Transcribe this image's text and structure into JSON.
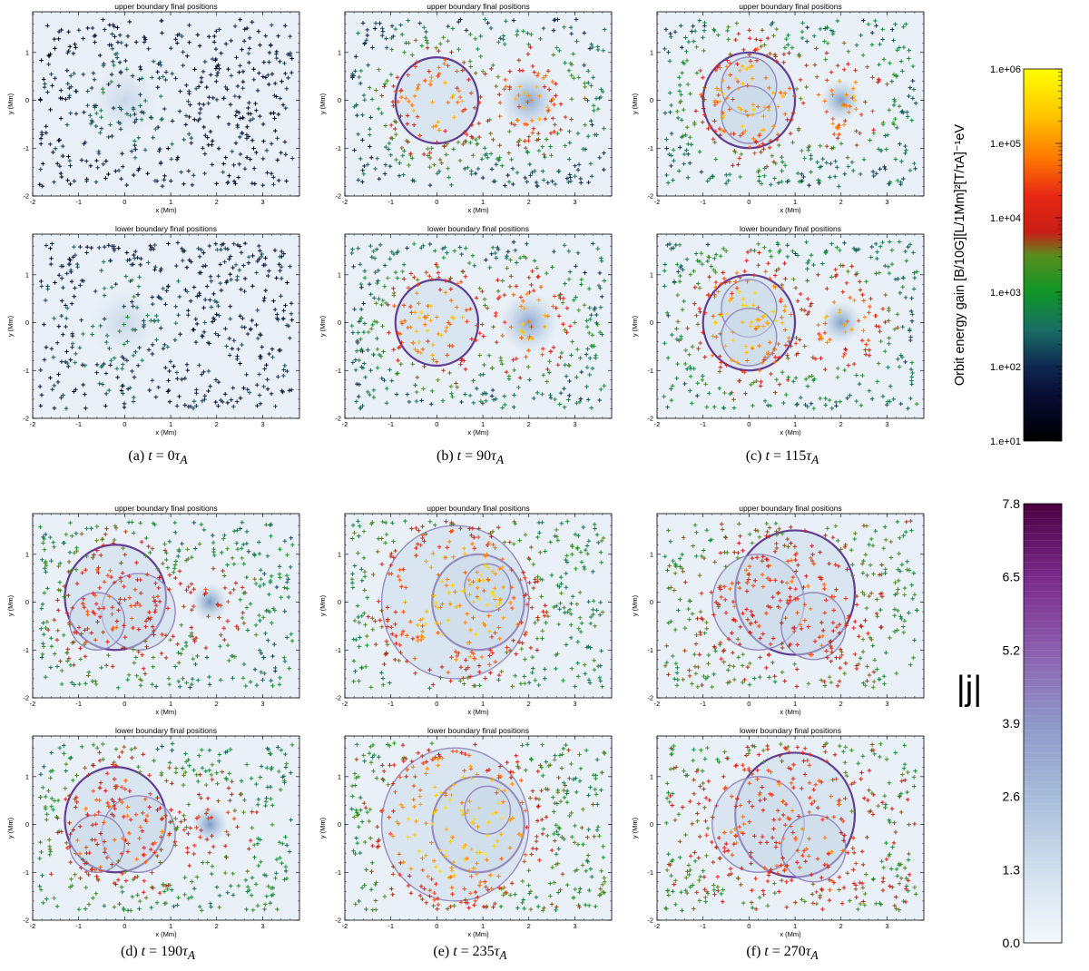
{
  "chart_data": {
    "type": "scatter",
    "xlabel": "x (Mm)",
    "ylabel": "y (Mm)",
    "xlim": [
      -2,
      3.8
    ],
    "ylim": [
      -2,
      1.85
    ],
    "xticks": [
      "-2",
      "-1",
      "0",
      "1",
      "2",
      "3"
    ],
    "yticks": [
      "-2",
      "-1",
      "0",
      "1"
    ],
    "subplot_titles": {
      "upper": "upper boundary final positions",
      "lower": "lower boundary final positions"
    },
    "panels": [
      {
        "id": "a",
        "caption_prefix": "(a) ",
        "caption_value": "0",
        "time": 0,
        "rings": [],
        "blobs": [
          {
            "x": 0,
            "y": 0,
            "r": 0.75,
            "o": 0.18
          }
        ],
        "energy_log": {
          "bg": 1.7,
          "near": 2.4
        }
      },
      {
        "id": "b",
        "caption_prefix": "(b) ",
        "caption_value": "90",
        "time": 90,
        "rings": [
          {
            "x": 0,
            "y": 0,
            "r": 0.9
          }
        ],
        "blobs": [
          {
            "x": 2,
            "y": 0,
            "r": 0.65,
            "o": 0.5
          }
        ],
        "energy_log": {
          "bg": 2.3,
          "near": 4.8
        }
      },
      {
        "id": "c",
        "caption_prefix": "(c) ",
        "caption_value": "115",
        "time": 115,
        "rings": [
          {
            "x": 0,
            "y": 0,
            "r": 1.0
          },
          {
            "x": 0,
            "y": 0.3,
            "r": 0.6
          },
          {
            "x": 0,
            "y": -0.3,
            "r": 0.6
          }
        ],
        "blobs": [
          {
            "x": 2,
            "y": 0,
            "r": 0.45,
            "o": 0.55
          }
        ],
        "energy_log": {
          "bg": 2.5,
          "near": 5.0
        }
      },
      {
        "id": "d",
        "caption_prefix": "(d) ",
        "caption_value": "190",
        "time": 190,
        "rings": [
          {
            "x": -0.2,
            "y": 0.1,
            "r": 1.1
          },
          {
            "x": 0.3,
            "y": -0.2,
            "r": 0.8
          },
          {
            "x": -0.6,
            "y": -0.4,
            "r": 0.6
          }
        ],
        "blobs": [
          {
            "x": 1.85,
            "y": 0,
            "r": 0.4,
            "o": 0.6
          }
        ],
        "energy_log": {
          "bg": 2.7,
          "near": 4.2
        }
      },
      {
        "id": "e",
        "caption_prefix": "(e) ",
        "caption_value": "235",
        "time": 235,
        "rings": [
          {
            "x": 0.9,
            "y": 0,
            "r": 1.0
          },
          {
            "x": 0.4,
            "y": 0,
            "r": 1.6
          },
          {
            "x": 1.1,
            "y": 0.3,
            "r": 0.5
          }
        ],
        "blobs": [],
        "energy_log": {
          "bg": 3.0,
          "near": 5.1
        }
      },
      {
        "id": "f",
        "caption_prefix": "(f) ",
        "caption_value": "270",
        "time": 270,
        "rings": [
          {
            "x": 1.0,
            "y": 0.2,
            "r": 1.3
          },
          {
            "x": 0.2,
            "y": 0,
            "r": 1.0
          },
          {
            "x": 1.4,
            "y": -0.5,
            "r": 0.7
          }
        ],
        "blobs": [],
        "energy_log": {
          "bg": 3.2,
          "near": 4.3
        }
      }
    ],
    "colorbars": [
      {
        "label": "Orbit energy gain [B/10G][L/1Mm]²[T/τA]⁻¹eV",
        "ticks": [
          "1.e+01",
          "1.e+02",
          "1.e+03",
          "1.e+04",
          "1.e+05",
          "1.e+06"
        ],
        "range": [
          1,
          6
        ],
        "scale": "log",
        "colors": [
          "#000000",
          "#0e1e5a",
          "#1f7f6a",
          "#0f9f23",
          "#6e8a1a",
          "#d41a12",
          "#ff6600",
          "#ffbb00",
          "#ffff00"
        ]
      },
      {
        "label": "|j|",
        "ticks": [
          "0.0",
          "1.3",
          "2.6",
          "3.9",
          "5.2",
          "6.5",
          "7.8"
        ],
        "range": [
          0,
          7.8
        ],
        "colors": [
          "#f4f8fb",
          "#d0dfed",
          "#a7bcd9",
          "#8f98c8",
          "#8b5eae",
          "#7a2a8a",
          "#4b0040"
        ]
      }
    ]
  }
}
